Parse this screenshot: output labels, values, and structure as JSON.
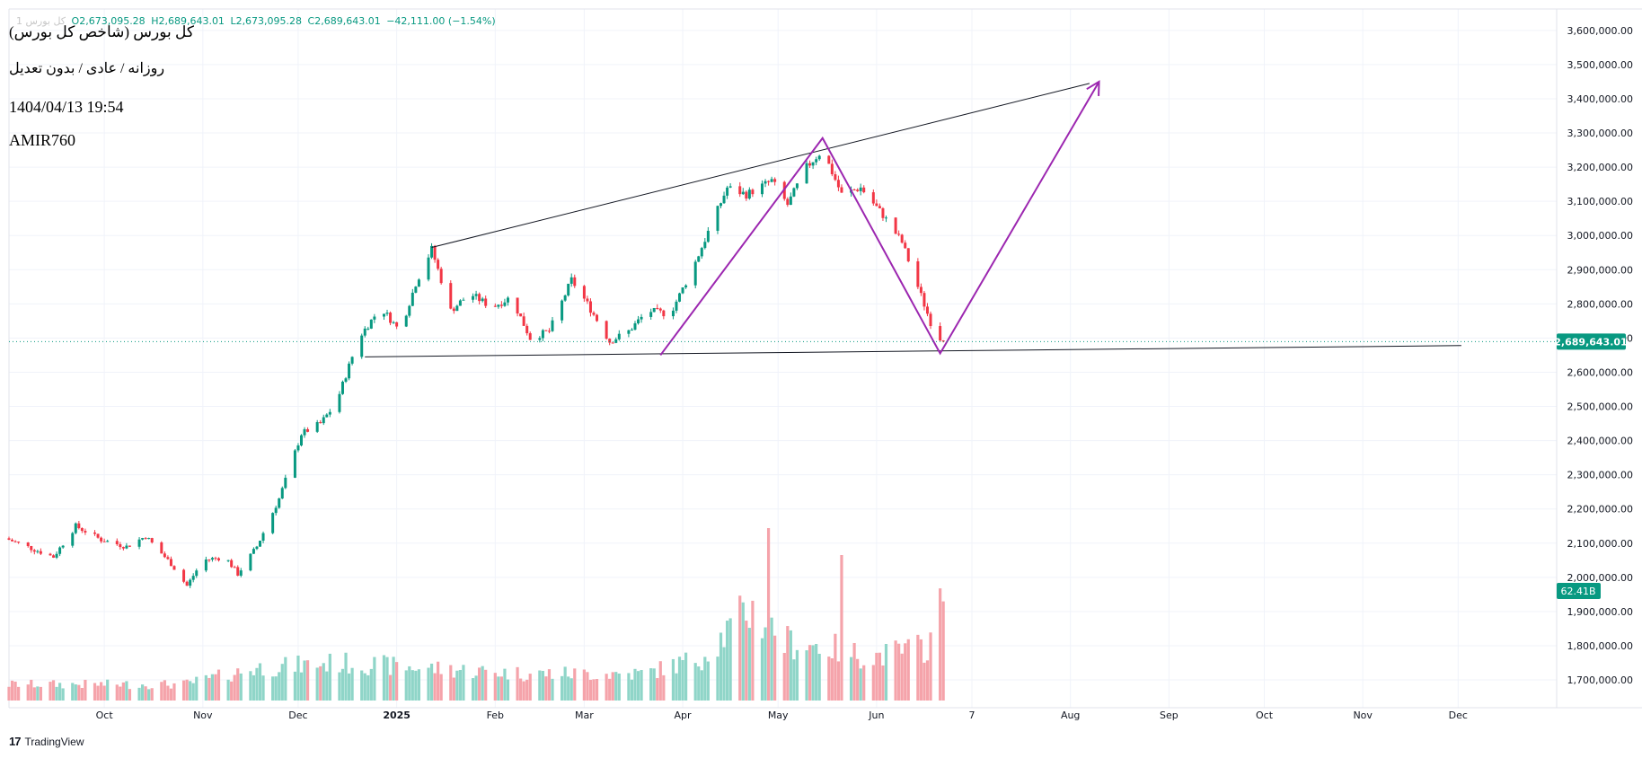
{
  "header": {
    "ticker": "کل بورس 1",
    "open": "O2,673,095.28",
    "high": "H2,689,643.01",
    "low": "L2,673,095.28",
    "close": "C2,689,643.01",
    "change": "−42,111.00 (−1.54%)"
  },
  "info": {
    "line1": "کل بورس (شاخص کل بورس)",
    "line2": "روزانه / عادی / بدون تعدیل",
    "line3": "1404/04/13 19:54",
    "line4": "AMIR760"
  },
  "footer": {
    "brand": "TradingView"
  },
  "colors": {
    "up": "#089981",
    "down": "#f23645",
    "vol_up": "#8fd5c8",
    "vol_down": "#f5a3aa",
    "pattern": "#9c27b0",
    "trendline": "#131722"
  },
  "price_label": "2,689,643.01",
  "volume_label": "62.41B",
  "chart_data": {
    "type": "candlestick",
    "ylim": [
      1650000,
      3650000
    ],
    "y_ticks": [
      "3,600,000.00",
      "3,500,000.00",
      "3,400,000.00",
      "3,300,000.00",
      "3,200,000.00",
      "3,100,000.00",
      "3,000,000.00",
      "2,900,000.00",
      "2,800,000.00",
      "2,700,000.00",
      "2,600,000.00",
      "2,500,000.00",
      "2,400,000.00",
      "2,300,000.00",
      "2,200,000.00",
      "2,100,000.00",
      "2,000,000.00",
      "1,900,000.00",
      "1,800,000.00",
      "1,700,000.00"
    ],
    "x_ticks": [
      "Oct",
      "Nov",
      "Dec",
      "2025",
      "Feb",
      "Mar",
      "Apr",
      "May",
      "Jun",
      "7",
      "Aug",
      "Sep",
      "Oct",
      "Nov",
      "Dec"
    ],
    "x_tick_dates": [
      "2024-10-01",
      "2024-11-01",
      "2024-12-01",
      "2025-01-01",
      "2025-02-01",
      "2025-03-01",
      "2025-04-01",
      "2025-05-01",
      "2025-06-01",
      "2025-07-01",
      "2025-08-01",
      "2025-09-01",
      "2025-10-01",
      "2025-11-01",
      "2025-12-01"
    ],
    "last_price": 2689643.01,
    "last_volume": "62.41B",
    "price_path": [
      [
        "2024-09-01",
        2110000
      ],
      [
        "2024-09-08",
        2085000
      ],
      [
        "2024-09-15",
        2060000
      ],
      [
        "2024-09-22",
        2150000
      ],
      [
        "2024-09-30",
        2110000
      ],
      [
        "2024-10-08",
        2090000
      ],
      [
        "2024-10-14",
        2120000
      ],
      [
        "2024-10-22",
        2040000
      ],
      [
        "2024-10-27",
        1975000
      ],
      [
        "2024-11-01",
        2050000
      ],
      [
        "2024-11-08",
        2060000
      ],
      [
        "2024-11-12",
        2010000
      ],
      [
        "2024-11-18",
        2090000
      ],
      [
        "2024-11-25",
        2230000
      ],
      [
        "2024-12-02",
        2420000
      ],
      [
        "2024-12-08",
        2450000
      ],
      [
        "2024-12-13",
        2510000
      ],
      [
        "2024-12-20",
        2700000
      ],
      [
        "2024-12-27",
        2790000
      ],
      [
        "2025-01-02",
        2720000
      ],
      [
        "2025-01-07",
        2860000
      ],
      [
        "2025-01-12",
        2960000
      ],
      [
        "2025-01-18",
        2780000
      ],
      [
        "2025-01-24",
        2830000
      ],
      [
        "2025-01-31",
        2790000
      ],
      [
        "2025-02-06",
        2820000
      ],
      [
        "2025-02-12",
        2700000
      ],
      [
        "2025-02-18",
        2720000
      ],
      [
        "2025-02-25",
        2870000
      ],
      [
        "2025-03-02",
        2800000
      ],
      [
        "2025-03-09",
        2690000
      ],
      [
        "2025-03-15",
        2720000
      ],
      [
        "2025-03-21",
        2780000
      ],
      [
        "2025-03-28",
        2770000
      ],
      [
        "2025-04-04",
        2900000
      ],
      [
        "2025-04-09",
        3010000
      ],
      [
        "2025-04-15",
        3140000
      ],
      [
        "2025-04-21",
        3120000
      ],
      [
        "2025-04-29",
        3160000
      ],
      [
        "2025-05-04",
        3090000
      ],
      [
        "2025-05-10",
        3200000
      ],
      [
        "2025-05-15",
        3250000
      ],
      [
        "2025-05-21",
        3120000
      ],
      [
        "2025-05-27",
        3140000
      ],
      [
        "2025-06-03",
        3060000
      ],
      [
        "2025-06-09",
        2980000
      ],
      [
        "2025-06-14",
        2850000
      ],
      [
        "2025-06-19",
        2720000
      ],
      [
        "2025-06-22",
        2689643
      ]
    ],
    "volume_path": [
      [
        "2024-09-01",
        0.15
      ],
      [
        "2024-10-26",
        0.15
      ],
      [
        "2024-11-18",
        0.3
      ],
      [
        "2024-12-13",
        0.35
      ],
      [
        "2025-02-10",
        0.25
      ],
      [
        "2025-03-20",
        0.25
      ],
      [
        "2025-04-07",
        0.4
      ],
      [
        "2025-04-22",
        0.85
      ],
      [
        "2025-05-03",
        0.55
      ],
      [
        "2025-05-16",
        0.5
      ],
      [
        "2025-05-30",
        0.4
      ],
      [
        "2025-06-17",
        0.5
      ],
      [
        "2025-06-22",
        0.92
      ]
    ],
    "volume_spikes": [
      [
        "2025-04-28",
        1.6
      ],
      [
        "2025-05-21",
        1.35
      ]
    ],
    "lines": [
      {
        "name": "upper-trendline",
        "points": [
          [
            "2025-01-12",
            2965000
          ],
          [
            "2025-08-07",
            3445000
          ]
        ]
      },
      {
        "name": "support-line",
        "points": [
          [
            "2024-12-22",
            2645000
          ],
          [
            "2025-12-02",
            2678000
          ]
        ]
      },
      {
        "name": "projection-path",
        "points": [
          [
            "2025-03-25",
            2650000
          ],
          [
            "2025-05-15",
            3285000
          ],
          [
            "2025-06-21",
            2655000
          ],
          [
            "2025-08-10",
            3450000
          ]
        ]
      }
    ],
    "grid": true,
    "legend": "none"
  }
}
